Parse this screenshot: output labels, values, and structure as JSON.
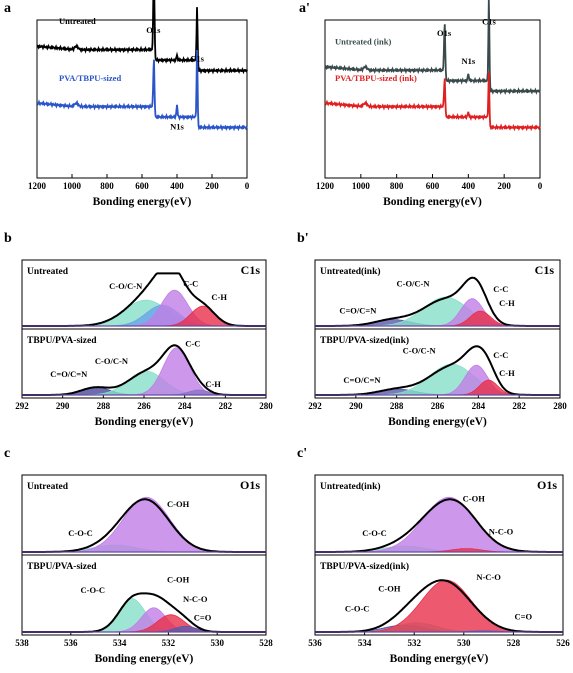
{
  "chart_data": [
    {
      "id": "a",
      "panel_label": "a",
      "type": "line",
      "xlabel": "Bonding energy(eV)",
      "xlim": [
        1200,
        0
      ],
      "xticks": [
        1200,
        1000,
        800,
        600,
        400,
        200,
        0
      ],
      "series": [
        {
          "name": "Untreated",
          "color": "#000000",
          "base": 0.68,
          "shift": 530,
          "o1s": 0.95,
          "c1s": 0.62,
          "n1s": 0.06
        },
        {
          "name": "PVA/TBPU-sized",
          "color": "#2a55c8",
          "base": 0.32,
          "shift": 530,
          "o1s": 0.55,
          "c1s": 0.78,
          "n1s": 0.14
        }
      ],
      "annotations": [
        {
          "text": "O1s",
          "x": 535,
          "y": 1.02
        },
        {
          "text": "C1s",
          "x": 285,
          "y": 0.82
        },
        {
          "text": "N1s",
          "x": 400,
          "y": 0.34
        }
      ]
    },
    {
      "id": "a2",
      "panel_label": "a'",
      "type": "line",
      "xlabel": "Bonding energy(eV)",
      "xlim": [
        1200,
        0
      ],
      "xticks": [
        1200,
        1000,
        800,
        600,
        400,
        200,
        0
      ],
      "series": [
        {
          "name": "Untreated (ink)",
          "color": "#3a4a4a",
          "base": 0.55,
          "o1s": 0.55,
          "c1s": 0.95,
          "n1s": 0.08
        },
        {
          "name": "PVA/TBPU-sized (ink)",
          "color": "#e02020",
          "base": 0.32,
          "o1s": 0.33,
          "c1s": 0.52,
          "n1s": 0.06
        }
      ],
      "annotations": [
        {
          "text": "O1s",
          "x": 535,
          "y": 1.0
        },
        {
          "text": "C1s",
          "x": 285,
          "y": 1.08
        },
        {
          "text": "N1s",
          "x": 400,
          "y": 0.8
        }
      ]
    },
    {
      "id": "b",
      "panel_label": "b",
      "type": "area",
      "core_label": "C1s",
      "xlabel": "Bonding energy(eV)",
      "xlim": [
        292,
        280
      ],
      "xticks": [
        292,
        290,
        288,
        286,
        284,
        282,
        280
      ],
      "subplots": [
        {
          "title": "Untreated",
          "envelope_color": "#000000",
          "components": [
            {
              "label": "C-O/C-N",
              "center": 285.9,
              "width": 1.1,
              "height": 0.52,
              "color": "#86e0c8"
            },
            {
              "label": "",
              "center": 285.1,
              "width": 0.8,
              "height": 0.42,
              "color": "#6aa4e8"
            },
            {
              "label": "C-C",
              "center": 284.5,
              "width": 0.65,
              "height": 0.72,
              "color": "#c17ee6"
            },
            {
              "label": "C-H",
              "center": 283.1,
              "width": 0.6,
              "height": 0.4,
              "color": "#e8304a"
            }
          ],
          "labels": [
            {
              "text": "C-O/C-N",
              "x": 286.9,
              "y": 0.74
            },
            {
              "text": "C-C",
              "x": 283.7,
              "y": 0.8
            },
            {
              "text": "C-H",
              "x": 282.3,
              "y": 0.52
            }
          ]
        },
        {
          "title": "TBPU/PVA-sized",
          "envelope_color": "#000000",
          "components": [
            {
              "label": "C=O/C=N",
              "center": 288.4,
              "width": 0.7,
              "height": 0.16,
              "color": "#4a4a9a"
            },
            {
              "label": "C-O/C-N",
              "center": 285.9,
              "width": 0.9,
              "height": 0.48,
              "color": "#86e0c8"
            },
            {
              "label": "C-C",
              "center": 284.4,
              "width": 0.65,
              "height": 0.95,
              "color": "#c17ee6"
            },
            {
              "label": "C-H",
              "center": 283.3,
              "width": 0.5,
              "height": 0.1,
              "color": "#8a74c8"
            }
          ],
          "labels": [
            {
              "text": "C=O/C=N",
              "x": 289.7,
              "y": 0.36
            },
            {
              "text": "C-O/C-N",
              "x": 287.6,
              "y": 0.62
            },
            {
              "text": "C-C",
              "x": 283.6,
              "y": 0.98
            },
            {
              "text": "C-H",
              "x": 282.6,
              "y": 0.16
            }
          ]
        }
      ]
    },
    {
      "id": "b2",
      "panel_label": "b'",
      "type": "area",
      "core_label": "C1s",
      "xlabel": "Bonding energy(eV)",
      "xlim": [
        292,
        280
      ],
      "xticks": [
        292,
        290,
        288,
        286,
        284,
        282,
        280
      ],
      "subplots": [
        {
          "title": "Untreated(ink)",
          "envelope_color": "#000000",
          "components": [
            {
              "label": "C=O/C=N",
              "center": 288.2,
              "width": 0.9,
              "height": 0.13,
              "color": "#5a5aaa"
            },
            {
              "label": "C-O/C-N",
              "center": 285.6,
              "width": 1.1,
              "height": 0.58,
              "color": "#86e0c8"
            },
            {
              "label": "C-C",
              "center": 284.3,
              "width": 0.55,
              "height": 0.55,
              "color": "#c17ee6"
            },
            {
              "label": "C-H",
              "center": 283.9,
              "width": 0.5,
              "height": 0.3,
              "color": "#e8304a"
            }
          ],
          "labels": [
            {
              "text": "C-O/C-N",
              "x": 287.2,
              "y": 0.8
            },
            {
              "text": "C=O/C=N",
              "x": 289.9,
              "y": 0.25
            },
            {
              "text": "C-C",
              "x": 282.9,
              "y": 0.68
            },
            {
              "text": "C-H",
              "x": 282.6,
              "y": 0.4
            }
          ]
        },
        {
          "title": "TBPU/PVA-sized(ink)",
          "envelope_color": "#000000",
          "components": [
            {
              "label": "C=O/C=N",
              "center": 288.0,
              "width": 0.9,
              "height": 0.12,
              "color": "#5a5aaa"
            },
            {
              "label": "C-O/C-N",
              "center": 285.3,
              "width": 1.1,
              "height": 0.62,
              "color": "#86e0c8"
            },
            {
              "label": "C-C",
              "center": 284.1,
              "width": 0.55,
              "height": 0.6,
              "color": "#c17ee6"
            },
            {
              "label": "C-H",
              "center": 283.5,
              "width": 0.45,
              "height": 0.3,
              "color": "#e8304a"
            }
          ],
          "labels": [
            {
              "text": "C-O/C-N",
              "x": 286.9,
              "y": 0.84
            },
            {
              "text": "C=O/C=N",
              "x": 289.7,
              "y": 0.24
            },
            {
              "text": "C-C",
              "x": 282.9,
              "y": 0.74
            },
            {
              "text": "C-H",
              "x": 282.6,
              "y": 0.38
            }
          ]
        }
      ]
    },
    {
      "id": "c",
      "panel_label": "c",
      "type": "area",
      "core_label": "O1s",
      "xlabel": "Bonding energy(eV)",
      "xlim": [
        538,
        528
      ],
      "xticks": [
        538,
        536,
        534,
        532,
        530,
        528
      ],
      "subplots": [
        {
          "title": "Untreated",
          "envelope_color": "#000000",
          "components": [
            {
              "label": "C-O-C",
              "center": 534.2,
              "width": 0.9,
              "height": 0.12,
              "color": "#86e0c8"
            },
            {
              "label": "C-OH",
              "center": 532.9,
              "width": 0.95,
              "height": 0.95,
              "color": "#c17ee6"
            }
          ],
          "labels": [
            {
              "text": "C-OH",
              "x": 531.6,
              "y": 0.78
            },
            {
              "text": "C-O-C",
              "x": 535.6,
              "y": 0.28
            }
          ]
        },
        {
          "title": "TBPU/PVA-sized",
          "envelope_color": "#000000",
          "components": [
            {
              "label": "C-O-C",
              "center": 533.5,
              "width": 0.55,
              "height": 0.58,
              "color": "#86e0c8"
            },
            {
              "label": "C-OH",
              "center": 532.6,
              "width": 0.5,
              "height": 0.42,
              "color": "#c17ee6"
            },
            {
              "label": "N-C-O",
              "center": 531.9,
              "width": 0.55,
              "height": 0.3,
              "color": "#e8304a"
            },
            {
              "label": "C=O",
              "center": 531.3,
              "width": 0.45,
              "height": 0.1,
              "color": "#5a5aaa"
            }
          ],
          "labels": [
            {
              "text": "C-O-C",
              "x": 535.1,
              "y": 0.68
            },
            {
              "text": "C-OH",
              "x": 531.6,
              "y": 0.86
            },
            {
              "text": "N-C-O",
              "x": 530.9,
              "y": 0.52
            },
            {
              "text": "C=O",
              "x": 530.6,
              "y": 0.2
            }
          ]
        }
      ]
    },
    {
      "id": "c2",
      "panel_label": "c'",
      "type": "area",
      "core_label": "O1s",
      "xlabel": "Bonding energy(eV)",
      "xlim": [
        536,
        526
      ],
      "xticks": [
        536,
        534,
        532,
        530,
        528,
        526
      ],
      "subplots": [
        {
          "title": "Untreated(ink)",
          "envelope_color": "#000000",
          "components": [
            {
              "label": "C-O-C",
              "center": 532.4,
              "width": 0.9,
              "height": 0.1,
              "color": "#86e0c8"
            },
            {
              "label": "C-OH",
              "center": 530.6,
              "width": 1.05,
              "height": 0.95,
              "color": "#c17ee6"
            },
            {
              "label": "N-C-O",
              "center": 529.9,
              "width": 0.6,
              "height": 0.06,
              "color": "#e8304a"
            }
          ],
          "labels": [
            {
              "text": "C-OH",
              "x": 529.6,
              "y": 0.88
            },
            {
              "text": "C-O-C",
              "x": 533.6,
              "y": 0.28
            },
            {
              "text": "N-C-O",
              "x": 528.5,
              "y": 0.3
            }
          ]
        },
        {
          "title": "TBPU/PVA-sized(ink)",
          "envelope_color": "#000000",
          "components": [
            {
              "label": "C-O-C",
              "center": 532.4,
              "width": 0.8,
              "height": 0.12,
              "color": "#5a5aaa"
            },
            {
              "label": "C-OH",
              "center": 531.9,
              "width": 0.8,
              "height": 0.16,
              "color": "#86e0c8"
            },
            {
              "label": "N-C-O",
              "center": 530.7,
              "width": 1.0,
              "height": 0.9,
              "color": "#e8304a"
            },
            {
              "label": "C=O",
              "center": 529.2,
              "width": 0.6,
              "height": 0.02,
              "color": "#5a5aaa"
            }
          ],
          "labels": [
            {
              "text": "C-OH",
              "x": 533.0,
              "y": 0.7
            },
            {
              "text": "N-C-O",
              "x": 529.0,
              "y": 0.9
            },
            {
              "text": "C-O-C",
              "x": 534.3,
              "y": 0.36
            },
            {
              "text": "C=O",
              "x": 527.6,
              "y": 0.22
            }
          ]
        }
      ]
    }
  ]
}
